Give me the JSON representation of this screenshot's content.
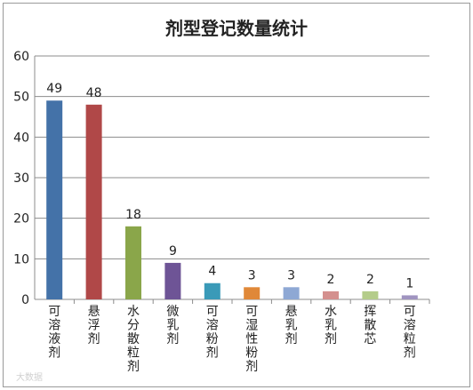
{
  "chart_data": {
    "type": "bar",
    "title": "剂型登记数量统计",
    "categories": [
      "可溶液剂",
      "悬浮剂",
      "水分散粒剂",
      "微乳剂",
      "可溶粉剂",
      "可湿性粉剂",
      "悬乳剂",
      "水乳剂",
      "挥散芯",
      "可溶粒剂"
    ],
    "values": [
      49,
      48,
      18,
      9,
      4,
      3,
      3,
      2,
      2,
      1
    ],
    "colors": [
      "#4472a8",
      "#b04848",
      "#8aa64a",
      "#6e5496",
      "#3a9ab8",
      "#e08838",
      "#8ea8d4",
      "#d4908e",
      "#b4cc8a",
      "#a094c0"
    ],
    "ylim": [
      0,
      60
    ],
    "yticks": [
      0,
      10,
      20,
      30,
      40,
      50,
      60
    ],
    "xlabel": "",
    "ylabel": "",
    "grid": true,
    "legend": "none"
  },
  "watermark": "大数据"
}
